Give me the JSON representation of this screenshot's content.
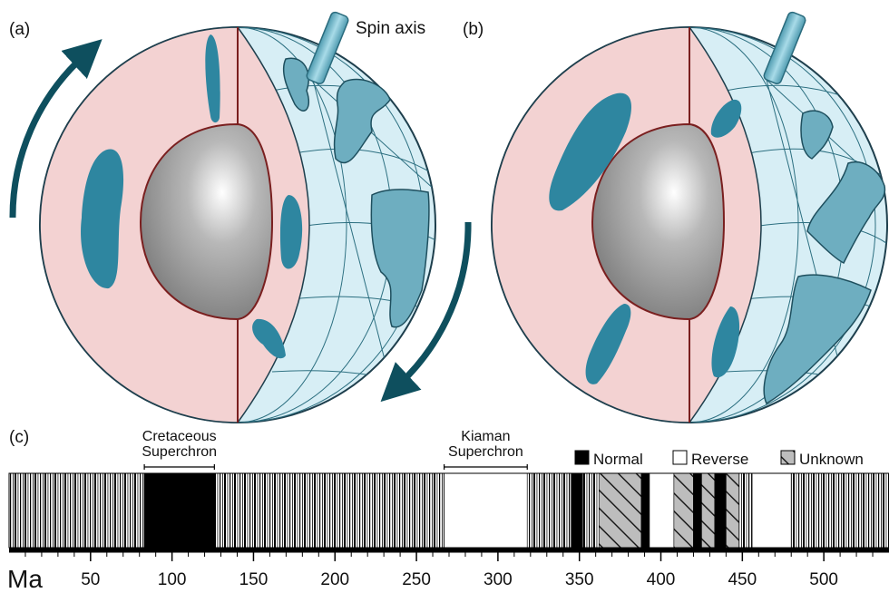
{
  "panels": [
    {
      "label": "(a)"
    },
    {
      "label": "(b)"
    },
    {
      "label": "(c)"
    }
  ],
  "spin_axis_label": "Spin axis",
  "timeline": {
    "axis_label": "Ma",
    "xlim": [
      0,
      540
    ],
    "xticks": [
      50,
      100,
      150,
      200,
      250,
      300,
      350,
      400,
      450,
      500
    ],
    "minor_xticks": [
      10,
      20,
      30,
      40,
      60,
      70,
      80,
      90,
      110,
      120,
      130,
      140,
      160,
      170,
      180,
      190,
      210,
      220,
      230,
      240,
      260,
      270,
      280,
      290,
      310,
      320,
      330,
      340,
      360,
      370,
      380,
      390,
      410,
      420,
      430,
      440,
      460,
      470,
      480,
      490,
      510,
      520,
      530
    ],
    "legend": [
      "Normal",
      "Reverse",
      "Unknown"
    ],
    "superchrons": [
      {
        "lines": [
          "Cretaceous",
          "Superchron"
        ],
        "from": 83,
        "to": 126
      },
      {
        "lines": [
          "Kiaman",
          "Superchron"
        ],
        "from": 267,
        "to": 318
      }
    ],
    "intervals": [
      {
        "from": 0,
        "to": 83
      },
      {
        "from": 83,
        "to": 126,
        "polarity": "Normal"
      },
      {
        "from": 126,
        "to": 267
      },
      {
        "from": 267,
        "to": 318,
        "polarity": "Reverse"
      },
      {
        "from": 318,
        "to": 345
      },
      {
        "from": 345,
        "to": 352,
        "polarity": "Normal"
      },
      {
        "from": 352,
        "to": 362
      },
      {
        "from": 362,
        "to": 388,
        "polarity": "Unknown"
      },
      {
        "from": 388,
        "to": 393,
        "polarity": "Normal"
      },
      {
        "from": 393,
        "to": 408,
        "polarity": "Reverse"
      },
      {
        "from": 408,
        "to": 420,
        "polarity": "Unknown"
      },
      {
        "from": 420,
        "to": 425,
        "polarity": "Normal"
      },
      {
        "from": 425,
        "to": 433,
        "polarity": "Unknown"
      },
      {
        "from": 433,
        "to": 440,
        "polarity": "Normal"
      },
      {
        "from": 440,
        "to": 448,
        "polarity": "Unknown"
      },
      {
        "from": 448,
        "to": 456
      },
      {
        "from": 456,
        "to": 480,
        "polarity": "Reverse"
      },
      {
        "from": 480,
        "to": 540
      }
    ]
  }
}
